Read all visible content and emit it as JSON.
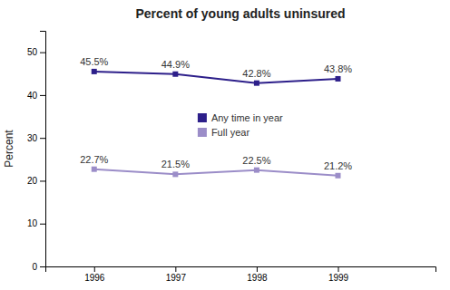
{
  "chart_data": {
    "type": "line",
    "title": "Percent of young adults uninsured",
    "y_label": "Percent",
    "x": [
      1996,
      1997,
      1998,
      1999
    ],
    "xlim": [
      1995.4,
      2000.2
    ],
    "xticks": [
      1996,
      1997,
      1998,
      1999
    ],
    "ylim": [
      0,
      55
    ],
    "yticks": [
      0,
      10,
      20,
      30,
      40,
      50
    ],
    "grid": false,
    "legend": "center",
    "data_labels": true,
    "series": [
      {
        "name": "Any time in year",
        "color": "#2d1f8a",
        "marker": "square",
        "line_style": "solid",
        "values": [
          45.5,
          44.9,
          42.8,
          43.8
        ],
        "value_labels": [
          "45.5%",
          "44.9%",
          "42.8%",
          "43.8%"
        ]
      },
      {
        "name": "Full year",
        "color": "#9b8dc8",
        "marker": "square",
        "line_style": "solid",
        "values": [
          22.7,
          21.5,
          22.5,
          21.2
        ],
        "value_labels": [
          "22.7%",
          "21.5%",
          "22.5%",
          "21.2%"
        ]
      }
    ]
  }
}
